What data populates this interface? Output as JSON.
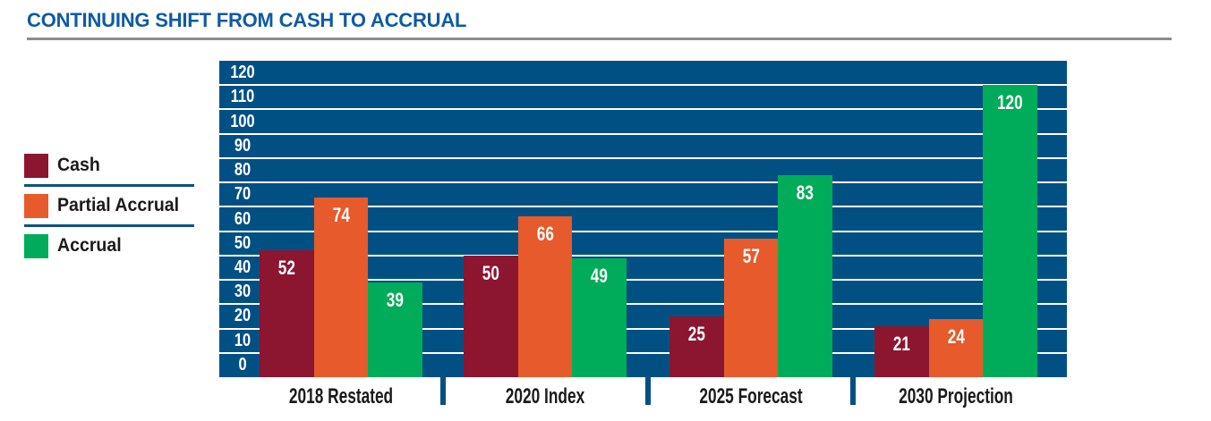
{
  "title": "CONTINUING SHIFT FROM CASH TO ACCRUAL",
  "colors": {
    "title": "#0F5AA4",
    "title_rule": "#8A8C8E",
    "plot_background": "#005083",
    "gridline": "#FFFFFF",
    "legend_divider": "#0E5180",
    "category_label": "#1A1A1A",
    "value_label": "#FFFFFF",
    "axis_label": "#FFFFFF",
    "cash": "#8C1530",
    "partial_accrual": "#E75A2B",
    "accrual": "#00AC59"
  },
  "legend": {
    "items": [
      {
        "label": "Cash",
        "color": "#8C1530"
      },
      {
        "label": "Partial Accrual",
        "color": "#E75A2B"
      },
      {
        "label": "Accrual",
        "color": "#00AC59"
      }
    ]
  },
  "chart_data": {
    "type": "bar",
    "title": "CONTINUING SHIFT FROM CASH TO ACCRUAL",
    "categories": [
      "2018 Restated",
      "2020 Index",
      "2025 Forecast",
      "2030 Projection"
    ],
    "series": [
      {
        "name": "Cash",
        "color": "#8C1530",
        "values": [
          52,
          50,
          25,
          21
        ]
      },
      {
        "name": "Partial Accrual",
        "color": "#E75A2B",
        "values": [
          74,
          66,
          57,
          24
        ]
      },
      {
        "name": "Accrual",
        "color": "#00AC59",
        "values": [
          39,
          49,
          83,
          120
        ]
      }
    ],
    "xlabel": "",
    "ylabel": "",
    "ylim": [
      0,
      130
    ],
    "ytick_step": 10,
    "ytick_labels": [
      "0",
      "10",
      "20",
      "30",
      "40",
      "50",
      "60",
      "70",
      "80",
      "90",
      "100",
      "110",
      "120"
    ],
    "grid": true,
    "value_labels_shown": true,
    "legend_position": "left",
    "plot_background": "#005083"
  }
}
